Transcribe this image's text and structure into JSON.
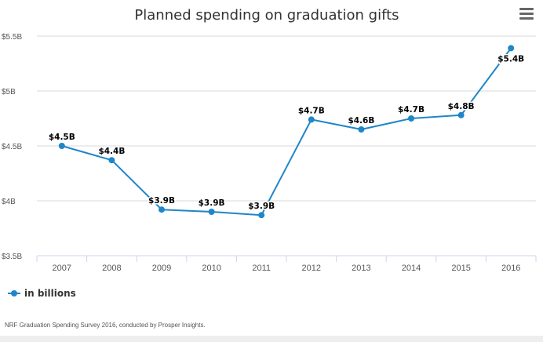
{
  "menu_icon": "hamburger-menu-icon",
  "credit": "NRF Graduation Spending Survey 2016, conducted by Prosper Insights.",
  "chart_data": {
    "type": "line",
    "title": "Planned spending on graduation gifts",
    "categories": [
      "2007",
      "2008",
      "2009",
      "2010",
      "2011",
      "2012",
      "2013",
      "2014",
      "2015",
      "2016"
    ],
    "series": [
      {
        "name": "in billions",
        "color": "#1f86c8",
        "values": [
          4.5,
          4.37,
          3.92,
          3.9,
          3.87,
          4.74,
          4.65,
          4.75,
          4.78,
          5.39
        ],
        "data_labels": [
          "$4.5B",
          "$4.4B",
          "$3.9B",
          "$3.9B",
          "$3.9B",
          "$4.7B",
          "$4.6B",
          "$4.7B",
          "$4.8B",
          "$5.4B"
        ]
      }
    ],
    "y_ticks": [
      3.5,
      4,
      4.5,
      5,
      5.5
    ],
    "y_tick_labels": [
      "$3.5B",
      "$4B",
      "$4.5B",
      "$5B",
      "$5.5B"
    ],
    "ylim": [
      3.5,
      5.5
    ],
    "grid": true,
    "legend_position": "bottom-left",
    "xlabel": "",
    "ylabel": ""
  }
}
